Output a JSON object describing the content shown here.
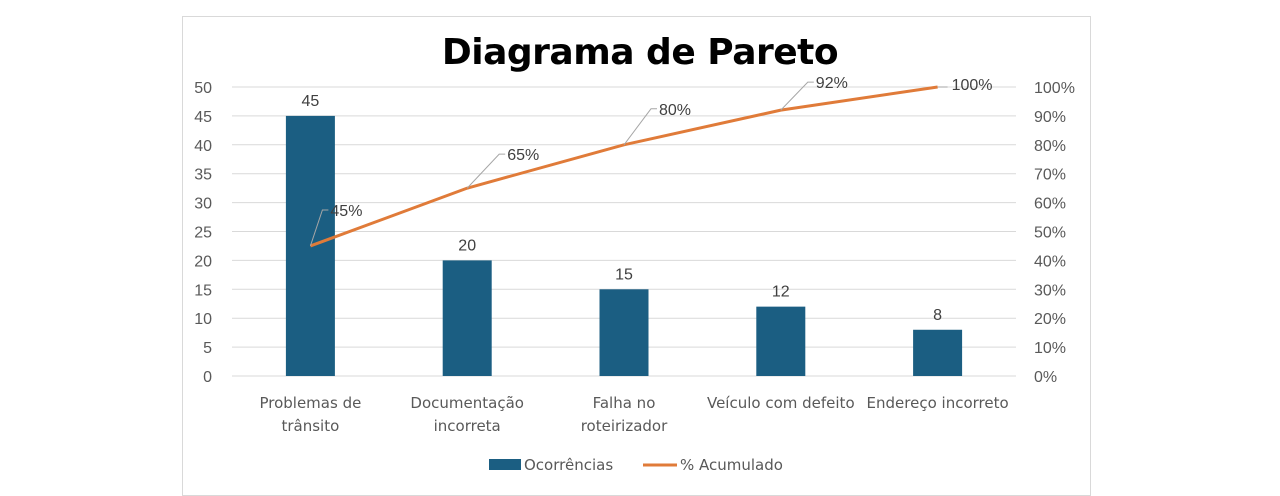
{
  "chart": {
    "title": "Diagrama de Pareto",
    "legend": {
      "bars": "Ocorrências",
      "line": "% Acumulado"
    }
  },
  "colors": {
    "bar": "#1b5e82",
    "line": "#e07b39",
    "grid": "#d9d9d9",
    "leader": "#a6a6a6"
  },
  "chart_data": {
    "type": "bar",
    "title": "Diagrama de Pareto",
    "categories": [
      "Problemas de trânsito",
      "Documentação incorreta",
      "Falha no roteirizador",
      "Veículo com defeito",
      "Endereço incorreto"
    ],
    "series": [
      {
        "name": "Ocorrências",
        "type": "bar",
        "axis": "left",
        "values": [
          45,
          20,
          15,
          12,
          8
        ],
        "labels": [
          "45",
          "20",
          "15",
          "12",
          "8"
        ]
      },
      {
        "name": "% Acumulado",
        "type": "line",
        "axis": "right",
        "values": [
          45,
          65,
          80,
          92,
          100
        ],
        "labels": [
          "45%",
          "65%",
          "80%",
          "92%",
          "100%"
        ]
      }
    ],
    "y_left": {
      "ylim": [
        0,
        50
      ],
      "ticks": [
        "0",
        "5",
        "10",
        "15",
        "20",
        "25",
        "30",
        "35",
        "40",
        "45",
        "50"
      ]
    },
    "y_right": {
      "ylim": [
        0,
        100
      ],
      "ticks": [
        "0%",
        "10%",
        "20%",
        "30%",
        "40%",
        "50%",
        "60%",
        "70%",
        "80%",
        "90%",
        "100%"
      ]
    },
    "xlabel": "",
    "ylabel": "",
    "grid": true,
    "legend_position": "bottom"
  }
}
